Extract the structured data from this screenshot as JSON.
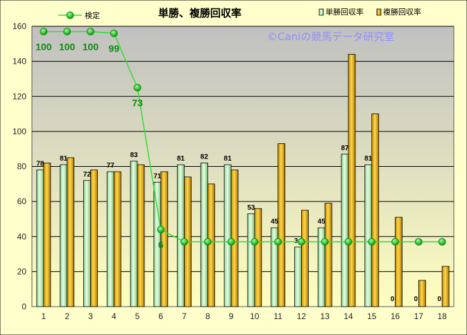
{
  "chart_data": {
    "type": "bar",
    "title": "単勝、複勝回収率",
    "watermark": "©Caniの競馬データ研究室",
    "categories": [
      "1",
      "2",
      "3",
      "4",
      "5",
      "6",
      "7",
      "8",
      "9",
      "10",
      "11",
      "12",
      "13",
      "14",
      "15",
      "16",
      "17",
      "18"
    ],
    "ylim": [
      0,
      160
    ],
    "yticks": [
      "0",
      "20",
      "40",
      "60",
      "80",
      "100",
      "120",
      "140",
      "160"
    ],
    "series": [
      {
        "name": "単勝回収率",
        "type": "bar",
        "color": "#b8f0b8",
        "values": [
          78,
          81,
          72,
          77,
          83,
          71,
          81,
          82,
          81,
          53,
          45,
          34,
          45,
          87,
          81,
          0,
          0,
          0
        ],
        "labels": [
          "78",
          "81",
          "72",
          "77",
          "83",
          "71",
          "81",
          "82",
          "81",
          "53",
          "45",
          "34",
          "45",
          "87",
          "81",
          "0",
          "0",
          "0"
        ]
      },
      {
        "name": "複勝回収率",
        "type": "bar",
        "color": "#f0b400",
        "values": [
          82,
          85,
          78,
          77,
          81,
          77,
          74,
          70,
          78,
          56,
          93,
          55,
          59,
          144,
          110,
          51,
          15,
          23
        ]
      },
      {
        "name": "検定",
        "type": "line",
        "color": "#33dd33",
        "values": [
          157,
          157,
          157,
          156,
          125,
          44,
          37,
          37,
          37,
          37,
          37,
          37,
          37,
          37,
          37,
          37,
          37,
          37
        ],
        "labels": [
          "100",
          "100",
          "100",
          "99",
          "73",
          "6",
          "",
          "",
          "",
          "",
          "",
          "",
          "",
          "",
          "",
          "",
          "",
          ""
        ]
      }
    ],
    "grid": true,
    "legend": "top"
  }
}
